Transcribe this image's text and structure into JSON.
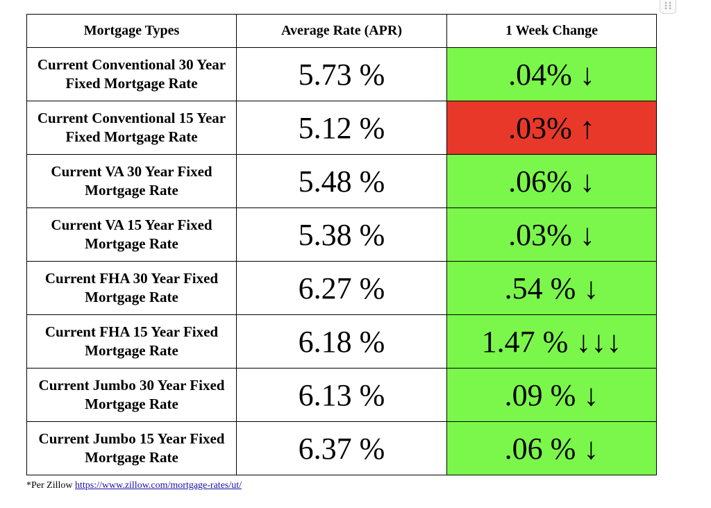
{
  "icons": {
    "drag_handle": "grip-dots-icon"
  },
  "colors": {
    "decrease": "#7af74a",
    "increase": "#e8382a"
  },
  "table": {
    "headers": {
      "type": "Mortgage Types",
      "rate": "Average Rate (APR)",
      "change": "1 Week Change"
    },
    "rows": [
      {
        "type": "Current Conventional 30 Year Fixed Mortgage Rate",
        "rate": "5.73 %",
        "change": ".04% ↓",
        "direction": "down"
      },
      {
        "type": "Current Conventional 15 Year Fixed Mortgage Rate",
        "rate": "5.12 %",
        "change": ".03% ↑",
        "direction": "up"
      },
      {
        "type": "Current VA 30 Year Fixed Mortgage Rate",
        "rate": "5.48 %",
        "change": ".06% ↓",
        "direction": "down"
      },
      {
        "type": "Current VA 15 Year Fixed Mortgage Rate",
        "rate": "5.38 %",
        "change": ".03% ↓",
        "direction": "down"
      },
      {
        "type": "Current FHA 30 Year Fixed Mortgage Rate",
        "rate": "6.27 %",
        "change": ".54 % ↓",
        "direction": "down"
      },
      {
        "type": "Current FHA 15 Year Fixed Mortgage Rate",
        "rate": "6.18 %",
        "change": "1.47 % ↓↓↓",
        "direction": "down"
      },
      {
        "type": "Current Jumbo 30 Year Fixed Mortgage Rate",
        "rate": "6.13 %",
        "change": ".09 % ↓",
        "direction": "down"
      },
      {
        "type": "Current Jumbo 15 Year Fixed Mortgage Rate",
        "rate": "6.37 %",
        "change": ".06 % ↓",
        "direction": "down"
      }
    ]
  },
  "footnote": {
    "prefix": "*Per Zillow ",
    "link_text": "https://www.zillow.com/mortgage-rates/ut/"
  }
}
